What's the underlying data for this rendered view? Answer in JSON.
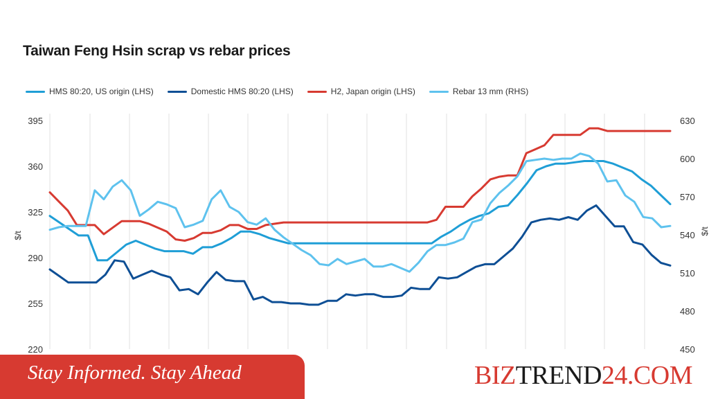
{
  "chart_data": {
    "type": "line",
    "title": "Taiwan Feng Hsin scrap vs rebar prices",
    "y_left": {
      "label": "$/t",
      "ticks": [
        "395",
        "360",
        "325",
        "290",
        "255",
        "220"
      ],
      "range": [
        220,
        395
      ]
    },
    "y_right": {
      "label": "$/t",
      "ticks": [
        "630",
        "600",
        "570",
        "540",
        "510",
        "480",
        "450"
      ],
      "range": [
        450,
        630
      ]
    },
    "grid": "vertical",
    "legend_position": "top",
    "series": [
      {
        "name": "HMS 80:20, US origin (LHS)",
        "axis": "left",
        "color": "#1f9ed6",
        "values": [
          322,
          317,
          312,
          307,
          307,
          288,
          288,
          294,
          300,
          303,
          300,
          297,
          295,
          295,
          295,
          293,
          298,
          298,
          301,
          305,
          310,
          310,
          308,
          305,
          303,
          301,
          301,
          301,
          301,
          301,
          301,
          301,
          301,
          301,
          301,
          301,
          301,
          301,
          301,
          301,
          301,
          306,
          310,
          315,
          319,
          322,
          324,
          329,
          330,
          338,
          347,
          357,
          360,
          362,
          362,
          363,
          364,
          364,
          364,
          362,
          359,
          356,
          350,
          345,
          338,
          331
        ]
      },
      {
        "name": "Domestic HMS 80:20 (LHS)",
        "axis": "left",
        "color": "#0e4f95",
        "values": [
          281,
          276,
          271,
          271,
          271,
          271,
          277,
          288,
          287,
          274,
          277,
          280,
          277,
          275,
          265,
          266,
          262,
          271,
          279,
          273,
          272,
          272,
          258,
          260,
          256,
          256,
          255,
          255,
          254,
          254,
          257,
          257,
          262,
          261,
          262,
          262,
          260,
          260,
          261,
          267,
          266,
          266,
          275,
          274,
          275,
          279,
          283,
          285,
          285,
          291,
          297,
          306,
          317,
          319,
          320,
          319,
          321,
          319,
          326,
          330,
          322,
          314,
          314,
          302,
          300,
          292,
          286,
          284
        ]
      },
      {
        "name": "H2, Japan origin (LHS)",
        "axis": "left",
        "color": "#d73a31",
        "values": [
          340,
          333,
          326,
          315,
          315,
          315,
          308,
          313,
          318,
          318,
          318,
          316,
          313,
          310,
          304,
          303,
          305,
          309,
          309,
          311,
          315,
          315,
          312,
          312,
          315,
          316,
          317,
          317,
          317,
          317,
          317,
          317,
          317,
          317,
          317,
          317,
          317,
          317,
          317,
          317,
          317,
          317,
          317,
          319,
          329,
          329,
          329,
          337,
          343,
          350,
          352,
          353,
          353,
          370,
          373,
          376,
          384,
          384,
          384,
          384,
          389,
          389,
          387,
          387,
          387,
          387,
          387,
          387,
          387,
          387
        ]
      },
      {
        "name": "Rebar 13 mm (RHS)",
        "axis": "right",
        "color": "#5ec2ee",
        "values": [
          544,
          546,
          547,
          547,
          547,
          575,
          568,
          578,
          583,
          575,
          555,
          560,
          566,
          564,
          561,
          546,
          548,
          551,
          568,
          575,
          562,
          558,
          550,
          548,
          553,
          544,
          538,
          533,
          528,
          524,
          517,
          516,
          521,
          517,
          519,
          521,
          515,
          515,
          517,
          514,
          511,
          518,
          527,
          532,
          532,
          534,
          537,
          550,
          552,
          565,
          573,
          579,
          586,
          598,
          599,
          600,
          599,
          600,
          600,
          604,
          602,
          596,
          582,
          583,
          571,
          566,
          554,
          553,
          546,
          547
        ]
      }
    ]
  },
  "footer": {
    "tagline": "Stay Informed. Stay Ahead",
    "brand_part1": "BIZ",
    "brand_part2": "TREND",
    "brand_part3": "24.COM",
    "brand_color_red": "#d73a31",
    "brand_color_dark": "#1a1a1a"
  }
}
